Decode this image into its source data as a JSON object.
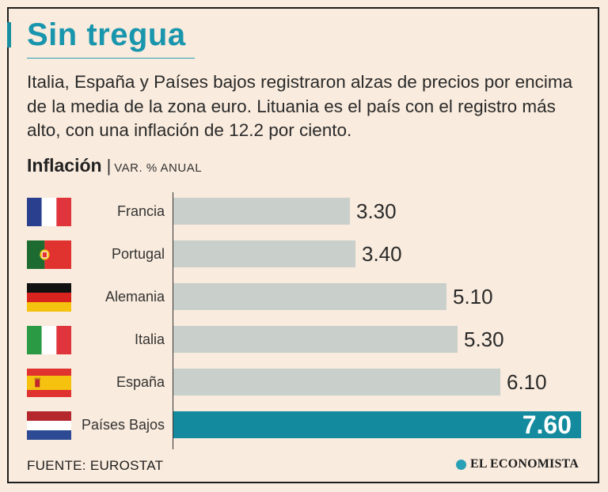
{
  "title": "Sin tregua",
  "subtitle": "Italia, España y Países bajos registraron alzas de precios por encima de la media de la zona euro. Lituania es el país con el registro más alto, con una inflación de 12.2 por ciento.",
  "chart_heading": {
    "bold": "Inflación",
    "separator": "|",
    "unit": "VAR. % ANUAL"
  },
  "chart_data": {
    "type": "bar",
    "orientation": "horizontal",
    "title": "Inflación",
    "unit": "VAR. % ANUAL",
    "categories": [
      "Francia",
      "Portugal",
      "Alemania",
      "Italia",
      "España",
      "Países Bajos"
    ],
    "values": [
      3.3,
      3.4,
      5.1,
      5.3,
      6.1,
      7.6
    ],
    "value_labels": [
      "3.30",
      "3.40",
      "5.10",
      "5.30",
      "6.10",
      "7.60"
    ],
    "highlight": "Países Bajos",
    "colors": {
      "bar": "#c9d0cc",
      "highlight": "#138a9d",
      "title": "#1996ad"
    },
    "flag_icons": [
      "france-flag-icon",
      "portugal-flag-icon",
      "germany-flag-icon",
      "italy-flag-icon",
      "spain-flag-icon",
      "netherlands-flag-icon"
    ]
  },
  "footer": {
    "source": "FUENTE: EUROSTAT",
    "brand": "EL ECONOMISTA"
  }
}
